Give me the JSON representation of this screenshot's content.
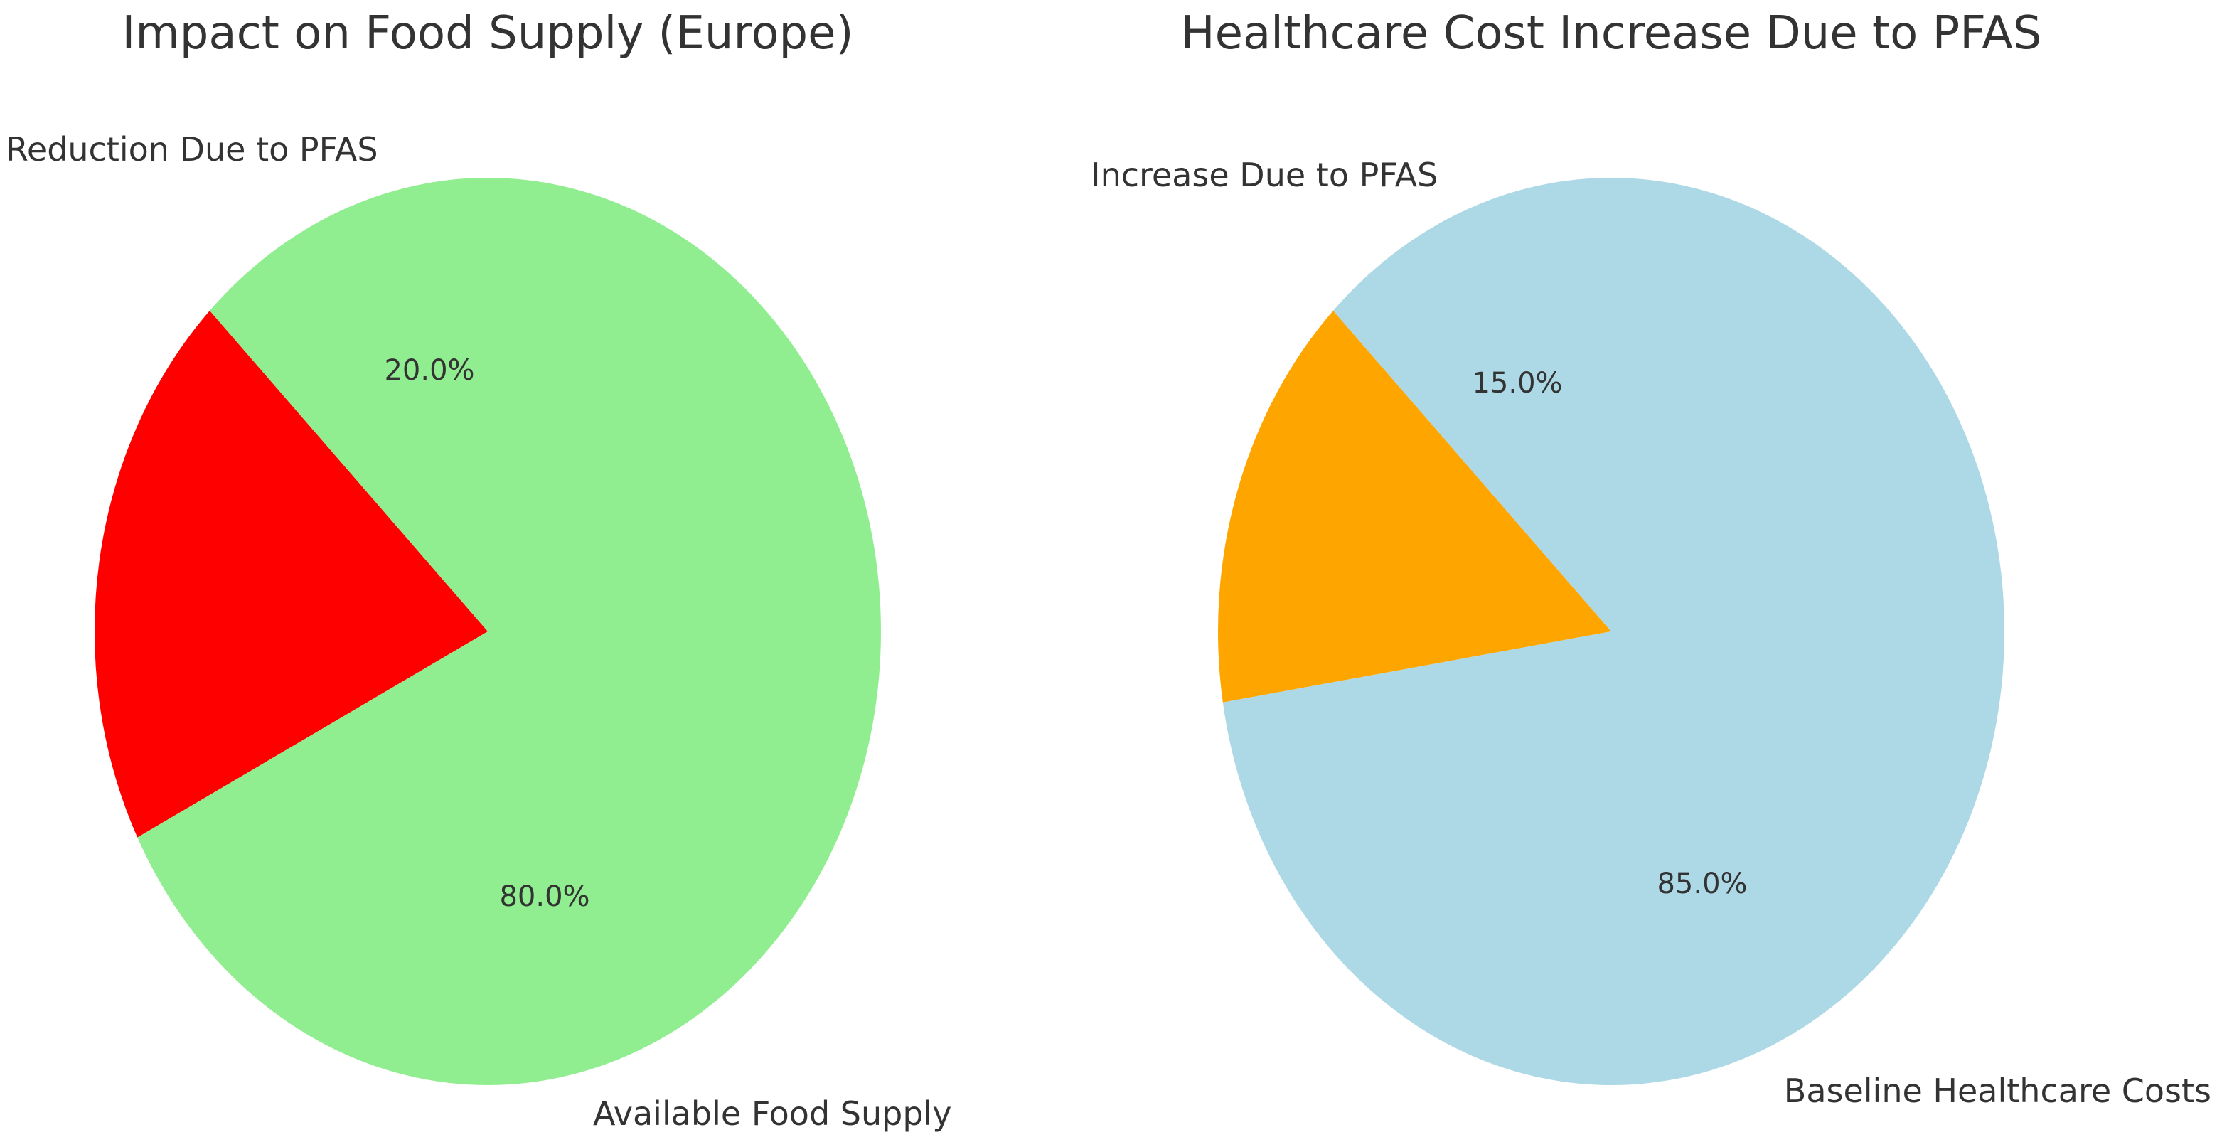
{
  "chart_data": [
    {
      "type": "pie",
      "title": "Impact on Food Supply (Europe)",
      "categories": [
        "Reduction Due to PFAS",
        "Available Food Supply"
      ],
      "values": [
        20,
        80
      ],
      "percent_labels": [
        "20.0%",
        "80.0%"
      ],
      "colors": [
        "#ff0000",
        "#90ee90"
      ],
      "start_angle_deg": 135,
      "direction": "counterclockwise"
    },
    {
      "type": "pie",
      "title": "Healthcare Cost Increase Due to PFAS",
      "categories": [
        "Increase Due to PFAS",
        "Baseline Healthcare Costs"
      ],
      "values": [
        15,
        85
      ],
      "percent_labels": [
        "15.0%",
        "85.0%"
      ],
      "colors": [
        "#ffa500",
        "#add8e6"
      ],
      "start_angle_deg": 135,
      "direction": "counterclockwise"
    }
  ]
}
